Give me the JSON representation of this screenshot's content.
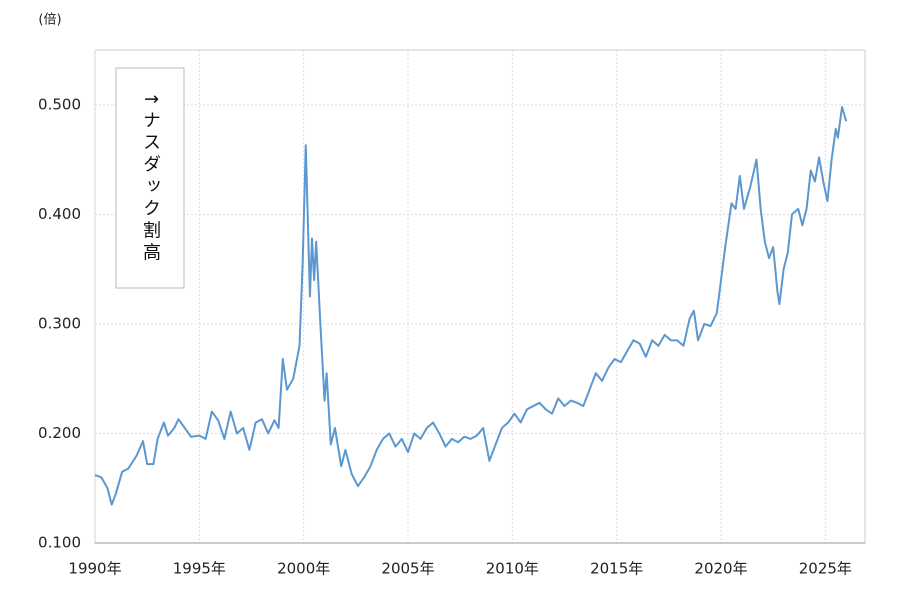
{
  "chart_data": {
    "type": "line",
    "unit_label": "(倍)",
    "annotation": "↑ナスダック割高",
    "x": [
      1990.0,
      1990.3,
      1990.6,
      1990.8,
      1991.0,
      1991.3,
      1991.6,
      1992.0,
      1992.3,
      1992.5,
      1992.8,
      1993.0,
      1993.3,
      1993.5,
      1993.8,
      1994.0,
      1994.3,
      1994.6,
      1995.0,
      1995.3,
      1995.6,
      1995.9,
      1996.2,
      1996.5,
      1996.8,
      1997.1,
      1997.4,
      1997.7,
      1998.0,
      1998.3,
      1998.6,
      1998.8,
      1999.0,
      1999.2,
      1999.5,
      1999.8,
      1999.95,
      2000.1,
      2000.3,
      2000.4,
      2000.5,
      2000.6,
      2000.8,
      2001.0,
      2001.1,
      2001.3,
      2001.5,
      2001.8,
      2002.0,
      2002.3,
      2002.6,
      2002.9,
      2003.2,
      2003.5,
      2003.8,
      2004.1,
      2004.4,
      2004.7,
      2005.0,
      2005.3,
      2005.6,
      2005.9,
      2006.2,
      2006.5,
      2006.8,
      2007.1,
      2007.4,
      2007.7,
      2008.0,
      2008.3,
      2008.6,
      2008.9,
      2009.2,
      2009.5,
      2009.8,
      2010.1,
      2010.4,
      2010.7,
      2011.0,
      2011.3,
      2011.6,
      2011.9,
      2012.2,
      2012.5,
      2012.8,
      2013.1,
      2013.4,
      2013.7,
      2014.0,
      2014.3,
      2014.6,
      2014.9,
      2015.2,
      2015.5,
      2015.8,
      2016.1,
      2016.4,
      2016.7,
      2017.0,
      2017.3,
      2017.6,
      2017.9,
      2018.2,
      2018.5,
      2018.7,
      2018.9,
      2019.2,
      2019.5,
      2019.8,
      2020.0,
      2020.2,
      2020.5,
      2020.7,
      2020.9,
      2021.1,
      2021.4,
      2021.7,
      2021.9,
      2022.1,
      2022.3,
      2022.5,
      2022.7,
      2022.8,
      2023.0,
      2023.2,
      2023.4,
      2023.7,
      2023.9,
      2024.1,
      2024.3,
      2024.5,
      2024.7,
      2024.9,
      2025.1,
      2025.3,
      2025.5,
      2025.6,
      2025.8,
      2026.0
    ],
    "series": [
      {
        "name": "ナスダック割高",
        "color": "#5b97d0",
        "values": [
          0.162,
          0.16,
          0.15,
          0.135,
          0.145,
          0.165,
          0.168,
          0.18,
          0.193,
          0.172,
          0.172,
          0.195,
          0.21,
          0.198,
          0.205,
          0.213,
          0.205,
          0.197,
          0.198,
          0.195,
          0.22,
          0.212,
          0.195,
          0.22,
          0.2,
          0.205,
          0.185,
          0.21,
          0.213,
          0.2,
          0.212,
          0.205,
          0.268,
          0.24,
          0.25,
          0.28,
          0.355,
          0.463,
          0.325,
          0.378,
          0.34,
          0.375,
          0.3,
          0.23,
          0.255,
          0.19,
          0.205,
          0.17,
          0.185,
          0.163,
          0.152,
          0.16,
          0.17,
          0.185,
          0.195,
          0.2,
          0.188,
          0.195,
          0.183,
          0.2,
          0.195,
          0.205,
          0.21,
          0.2,
          0.188,
          0.195,
          0.192,
          0.197,
          0.195,
          0.198,
          0.205,
          0.175,
          0.19,
          0.205,
          0.21,
          0.218,
          0.21,
          0.222,
          0.225,
          0.228,
          0.222,
          0.218,
          0.232,
          0.225,
          0.23,
          0.228,
          0.225,
          0.24,
          0.255,
          0.248,
          0.26,
          0.268,
          0.265,
          0.275,
          0.285,
          0.282,
          0.27,
          0.285,
          0.28,
          0.29,
          0.285,
          0.285,
          0.28,
          0.305,
          0.312,
          0.285,
          0.3,
          0.298,
          0.31,
          0.34,
          0.37,
          0.41,
          0.405,
          0.435,
          0.405,
          0.425,
          0.45,
          0.405,
          0.375,
          0.36,
          0.37,
          0.33,
          0.318,
          0.35,
          0.365,
          0.4,
          0.405,
          0.39,
          0.405,
          0.44,
          0.43,
          0.452,
          0.43,
          0.412,
          0.45,
          0.478,
          0.47,
          0.498,
          0.485
        ]
      }
    ],
    "xlim": [
      1990,
      2026.9
    ],
    "xticks": [
      {
        "value": 1990,
        "label": "1990年"
      },
      {
        "value": 1995,
        "label": "1995年"
      },
      {
        "value": 2000,
        "label": "2000年"
      },
      {
        "value": 2005,
        "label": "2005年"
      },
      {
        "value": 2010,
        "label": "2010年"
      },
      {
        "value": 2015,
        "label": "2015年"
      },
      {
        "value": 2020,
        "label": "2020年"
      },
      {
        "value": 2025,
        "label": "2025年"
      }
    ],
    "ylim": [
      0.1,
      0.55
    ],
    "yticks": [
      {
        "value": 0.1,
        "label": "0.100"
      },
      {
        "value": 0.2,
        "label": "0.200"
      },
      {
        "value": 0.3,
        "label": "0.300"
      },
      {
        "value": 0.4,
        "label": "0.400"
      },
      {
        "value": 0.5,
        "label": "0.500"
      }
    ],
    "grid": true
  }
}
